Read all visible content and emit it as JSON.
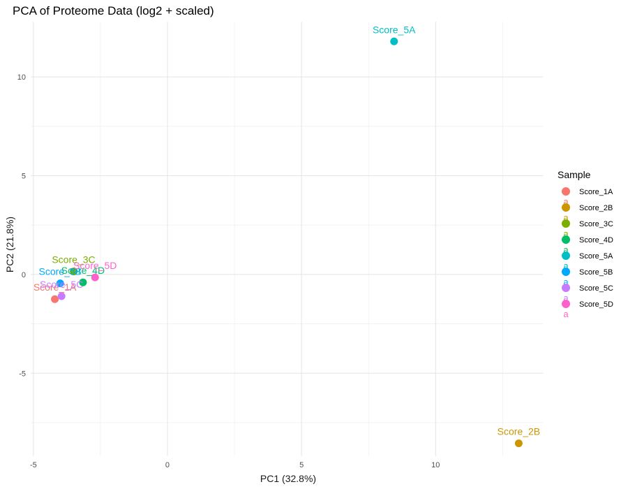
{
  "chart_data": {
    "type": "scatter",
    "title": "PCA of Proteome Data (log2 + scaled)",
    "xlabel": "PC1 (32.8%)",
    "ylabel": "PC2 (21.8%)",
    "xlim": [
      -5.1,
      14.0
    ],
    "ylim": [
      -9.2,
      12.8
    ],
    "x_ticks": [
      -5,
      0,
      5,
      10
    ],
    "y_ticks": [
      -5,
      0,
      5,
      10
    ],
    "grid": true,
    "legend_title": "Sample",
    "legend_position": "right",
    "legend_key_glyph": "a",
    "points": [
      {
        "name": "Score_1A",
        "x": -4.2,
        "y": -1.25,
        "color": "#F8766D"
      },
      {
        "name": "Score_2B",
        "x": 13.1,
        "y": -8.55,
        "color": "#CD9600"
      },
      {
        "name": "Score_3C",
        "x": -3.5,
        "y": 0.15,
        "color": "#7CAE00"
      },
      {
        "name": "Score_4D",
        "x": -3.15,
        "y": -0.4,
        "color": "#00BE67"
      },
      {
        "name": "Score_5A",
        "x": 8.45,
        "y": 11.8,
        "color": "#00BFC4"
      },
      {
        "name": "Score_5B",
        "x": -4.0,
        "y": -0.45,
        "color": "#00A9FF"
      },
      {
        "name": "Score_5C",
        "x": -3.95,
        "y": -1.1,
        "color": "#C77CFF"
      },
      {
        "name": "Score_5D",
        "x": -2.7,
        "y": -0.15,
        "color": "#FF61CC"
      }
    ]
  }
}
